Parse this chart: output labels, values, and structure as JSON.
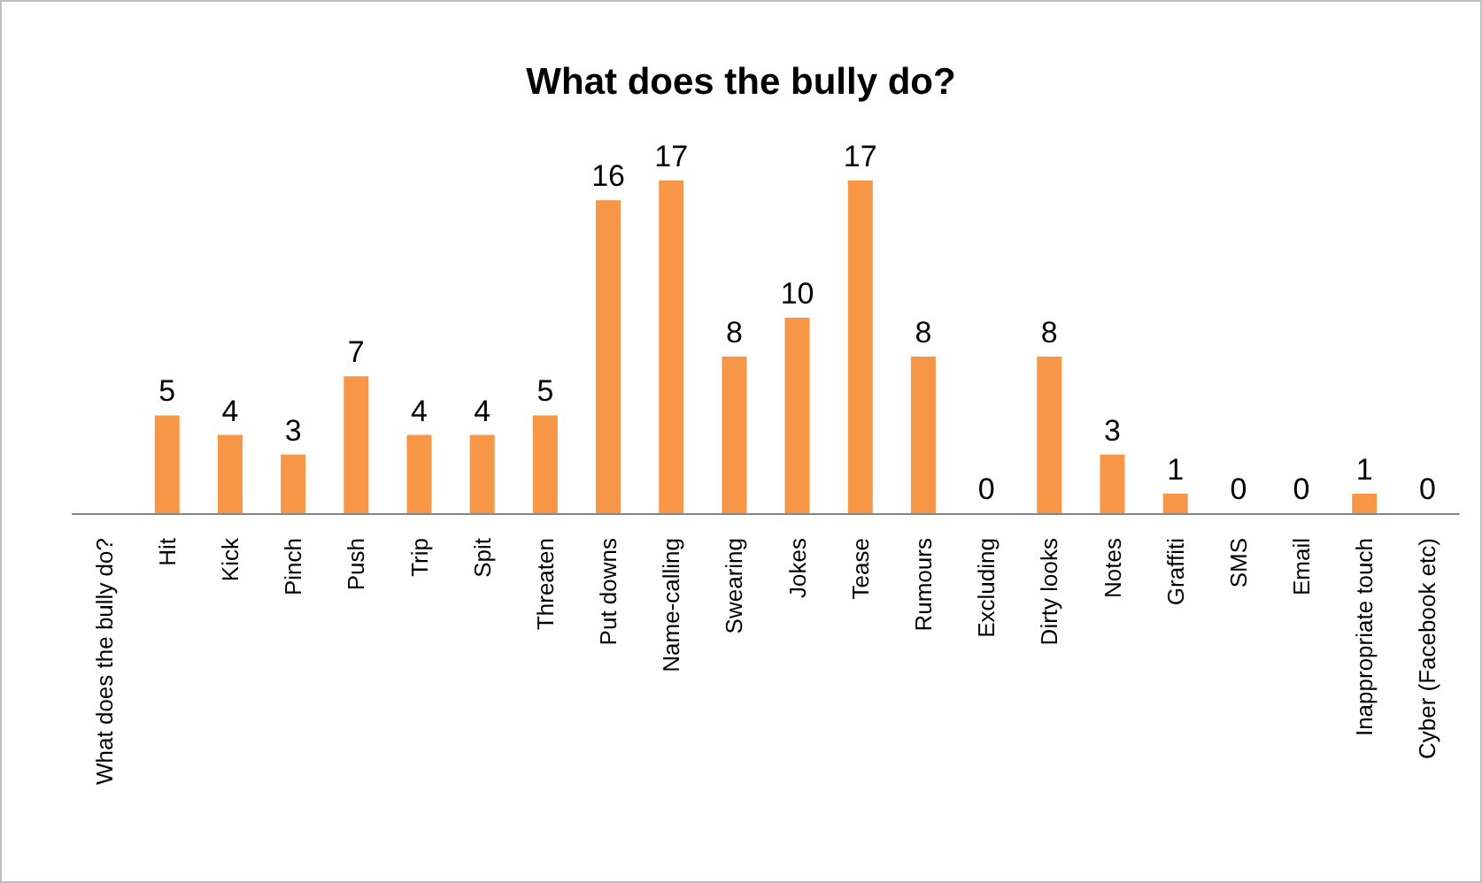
{
  "chart_data": {
    "type": "bar",
    "title": "What does the bully do?",
    "categories": [
      "What does the bully do?",
      "Hit",
      "Kick",
      "Pinch",
      "Push",
      "Trip",
      "Spit",
      "Threaten",
      "Put downs",
      "Name-calling",
      "Swearing",
      "Jokes",
      "Tease",
      "Rumours",
      "Excluding",
      "Dirty looks",
      "Notes",
      "Graffiti",
      "SMS",
      "Email",
      "Inappropriate touch",
      "Cyber (Facebook etc)"
    ],
    "values": [
      null,
      5,
      4,
      3,
      7,
      4,
      4,
      5,
      16,
      17,
      8,
      10,
      17,
      8,
      0,
      8,
      3,
      1,
      0,
      0,
      1,
      0
    ],
    "color": "#f79646",
    "data_labels": true
  }
}
